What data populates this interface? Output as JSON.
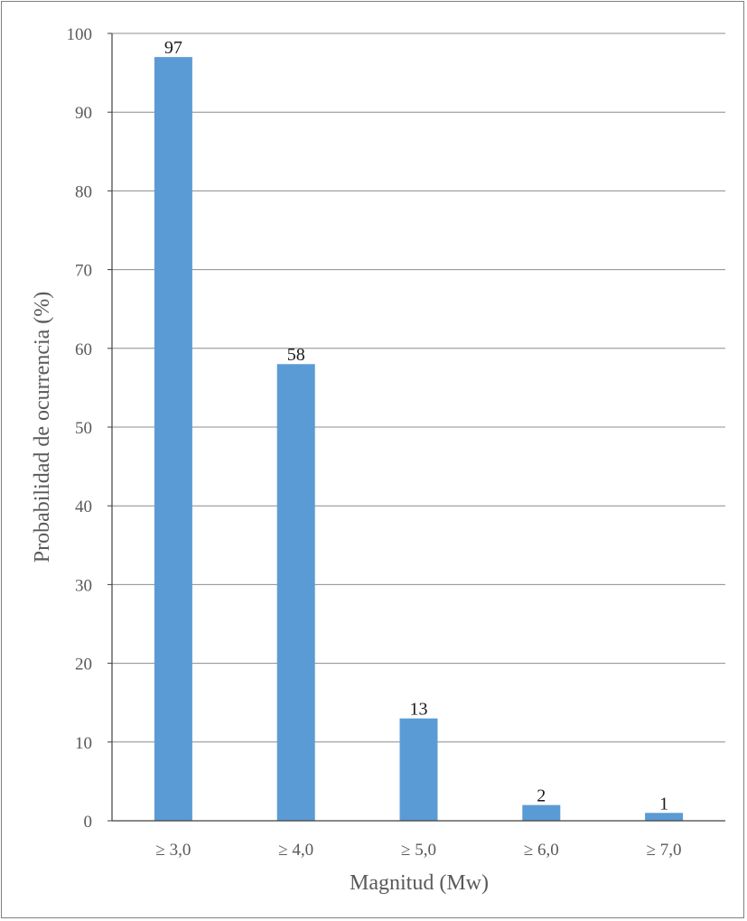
{
  "chart_data": {
    "type": "bar",
    "title": "",
    "xlabel": "Magnitud  (Mw)",
    "ylabel": "Probabilidad de ocurrencia (%)",
    "categories": [
      "≥ 3,0",
      "≥ 4,0",
      "≥ 5,0",
      "≥ 6,0",
      "≥ 7,0"
    ],
    "values": [
      97,
      58,
      13,
      2,
      1
    ],
    "ylim": [
      0,
      100
    ],
    "yticks": [
      0,
      10,
      20,
      30,
      40,
      50,
      60,
      70,
      80,
      90,
      100
    ],
    "grid": true,
    "legend": "none",
    "bar_color": "#5b9bd5",
    "grid_color": "#8c8c8c",
    "axis_color": "#404040"
  }
}
